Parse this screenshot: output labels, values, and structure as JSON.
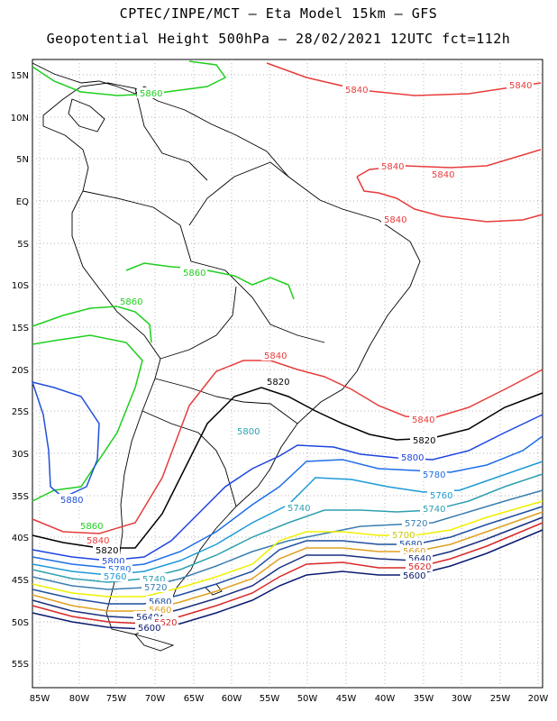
{
  "header": {
    "line1": "CPTEC/INPE/MCT –  Eta Model 15km – GFS",
    "line2": "Geopotential Height 500hPa – 28/02/2021 12UTC fct=112h"
  },
  "axes": {
    "lat_labels": [
      "15N",
      "10N",
      "5N",
      "EQ",
      "5S",
      "10S",
      "15S",
      "20S",
      "25S",
      "30S",
      "35S",
      "40S",
      "45S",
      "50S",
      "55S"
    ],
    "lon_labels": [
      "85W",
      "80W",
      "75W",
      "70W",
      "65W",
      "60W",
      "55W",
      "50W",
      "45W",
      "40W",
      "35W",
      "30W",
      "25W",
      "20W"
    ]
  },
  "colors": {
    "c5860": "#1fcf1f",
    "c5840": "#e83c3c",
    "c5820": "#000000",
    "c5800": "#1e44e0",
    "c5780": "#1e6ee6",
    "c5760": "#1e9ad8",
    "c5740": "#2ea0b0",
    "c5720": "#3b7fb0",
    "c5700": "#f0f000",
    "c5680": "#1f4fa0",
    "c5660": "#e0a020",
    "c5640": "#1a2f80",
    "c5620": "#d82828",
    "c5600": "#0a1a70",
    "c5880": "#2050d8",
    "coast": "#000000"
  },
  "contour_labels": {
    "g1": "5860",
    "g2": "5860",
    "g3": "5860",
    "g4": "5860",
    "r1": "5840",
    "r2": "5840",
    "r3": "5840",
    "r4": "5840",
    "r5": "5840",
    "r6": "5840",
    "r7": "5840",
    "r8": "5840",
    "k1": "5820",
    "k2": "5820",
    "k3": "5820",
    "b1": "5880",
    "s5800a": "5800",
    "s5800b": "5800",
    "s5800c": "5800",
    "s5780a": "5780",
    "s5780b": "5780",
    "s5760a": "5760",
    "s5760b": "5760",
    "s5740a": "5740",
    "s5740b": "5740",
    "s5740c": "5740",
    "s5720a": "5720",
    "s5720b": "5720",
    "s5700a": "5700",
    "s5680a": "5680",
    "s5680b": "5680",
    "s5660a": "5660",
    "s5660b": "5660",
    "s5640a": "5640",
    "s5640b": "5640",
    "s5620a": "5620",
    "s5620b": "5620",
    "s5600a": "5600",
    "s5600b": "5600"
  }
}
